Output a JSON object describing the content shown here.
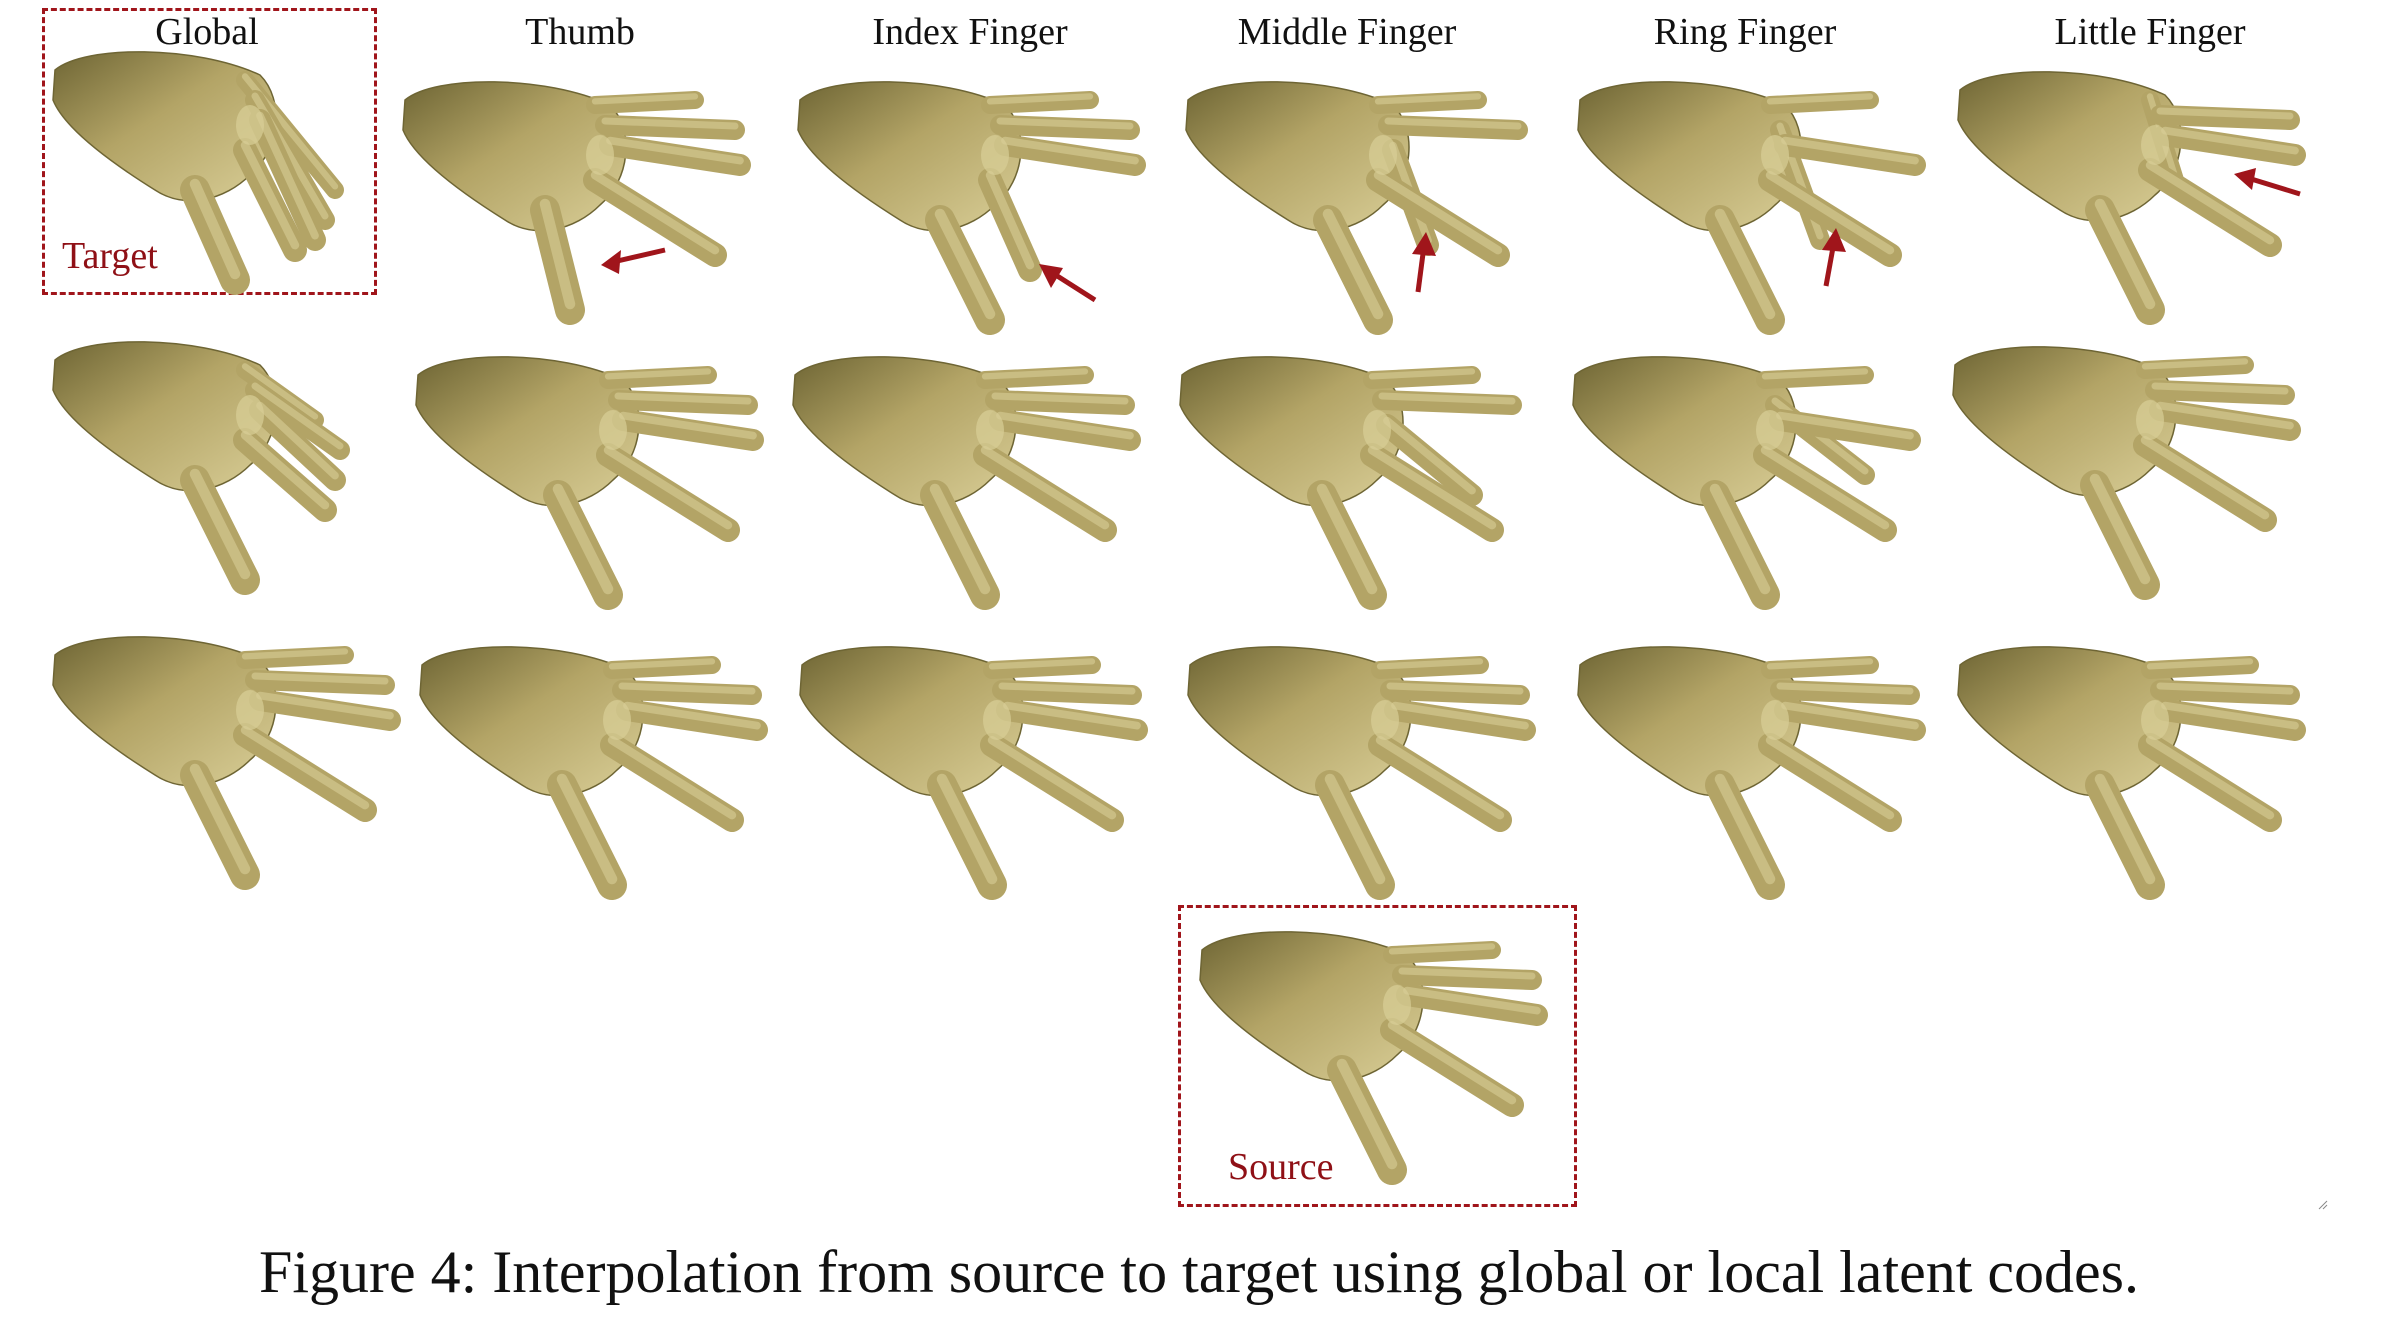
{
  "columns": [
    {
      "label": "Global"
    },
    {
      "label": "Thumb"
    },
    {
      "label": "Index Finger"
    },
    {
      "label": "Middle Finger"
    },
    {
      "label": "Ring Finger"
    },
    {
      "label": "Little Finger"
    }
  ],
  "target_label": "Target",
  "source_label": "Source",
  "caption": "Figure 4: Interpolation from source to target using global or local latent codes.",
  "colors": {
    "skin": "#b3a466",
    "skin_light": "#d9ce97",
    "skin_dark": "#6e6534",
    "accent": "#a0151b"
  }
}
